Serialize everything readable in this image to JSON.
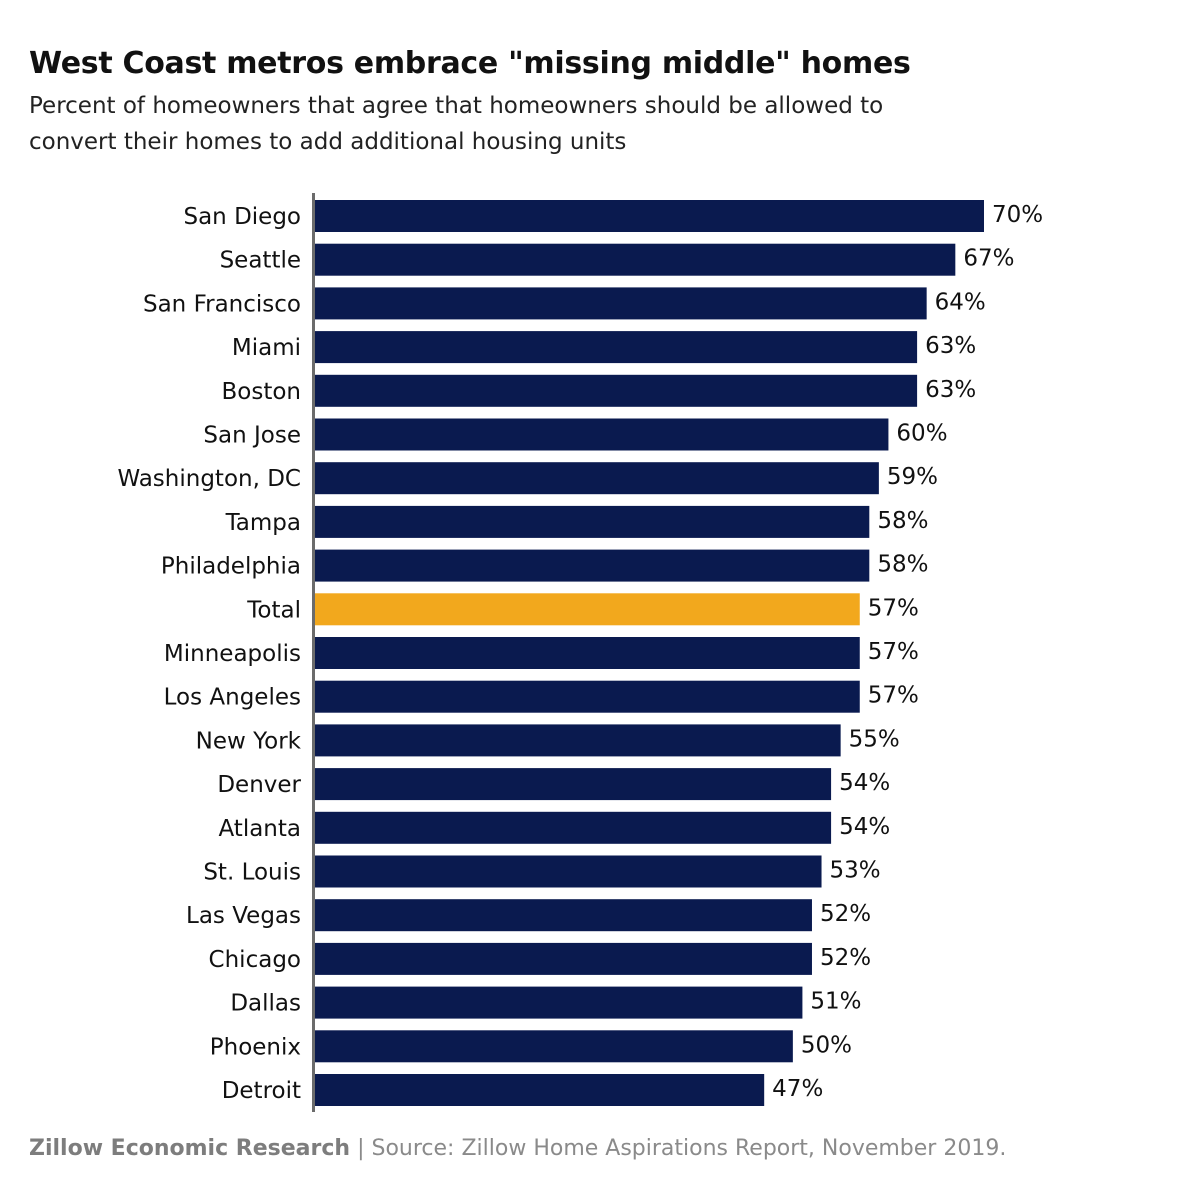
{
  "chart_data": {
    "type": "bar",
    "orientation": "horizontal",
    "title": "West Coast metros embrace \"missing middle\" homes",
    "subtitle": "Percent of homeowners that agree that homeowners should be allowed to convert their homes to add additional housing units",
    "categories": [
      "San Diego",
      "Seattle",
      "San Francisco",
      "Miami",
      "Boston",
      "San Jose",
      "Washington, DC",
      "Tampa",
      "Philadelphia",
      "Total",
      "Minneapolis",
      "Los Angeles",
      "New York",
      "Denver",
      "Atlanta",
      "St. Louis",
      "Las Vegas",
      "Chicago",
      "Dallas",
      "Phoenix",
      "Detroit"
    ],
    "values": [
      70,
      67,
      64,
      63,
      63,
      60,
      59,
      58,
      58,
      57,
      57,
      57,
      55,
      54,
      54,
      53,
      52,
      52,
      51,
      50,
      47
    ],
    "value_suffix": "%",
    "highlight_category": "Total",
    "xlim": [
      0,
      100
    ],
    "grid": false,
    "colors": {
      "bar": "#0a1a4f",
      "highlight": "#f2a81d",
      "axis": "#6b6b6b"
    }
  },
  "footer": {
    "org": "Zillow Economic Research",
    "separator": "|",
    "source": "Source: Zillow Home Aspirations Report, November 2019."
  }
}
